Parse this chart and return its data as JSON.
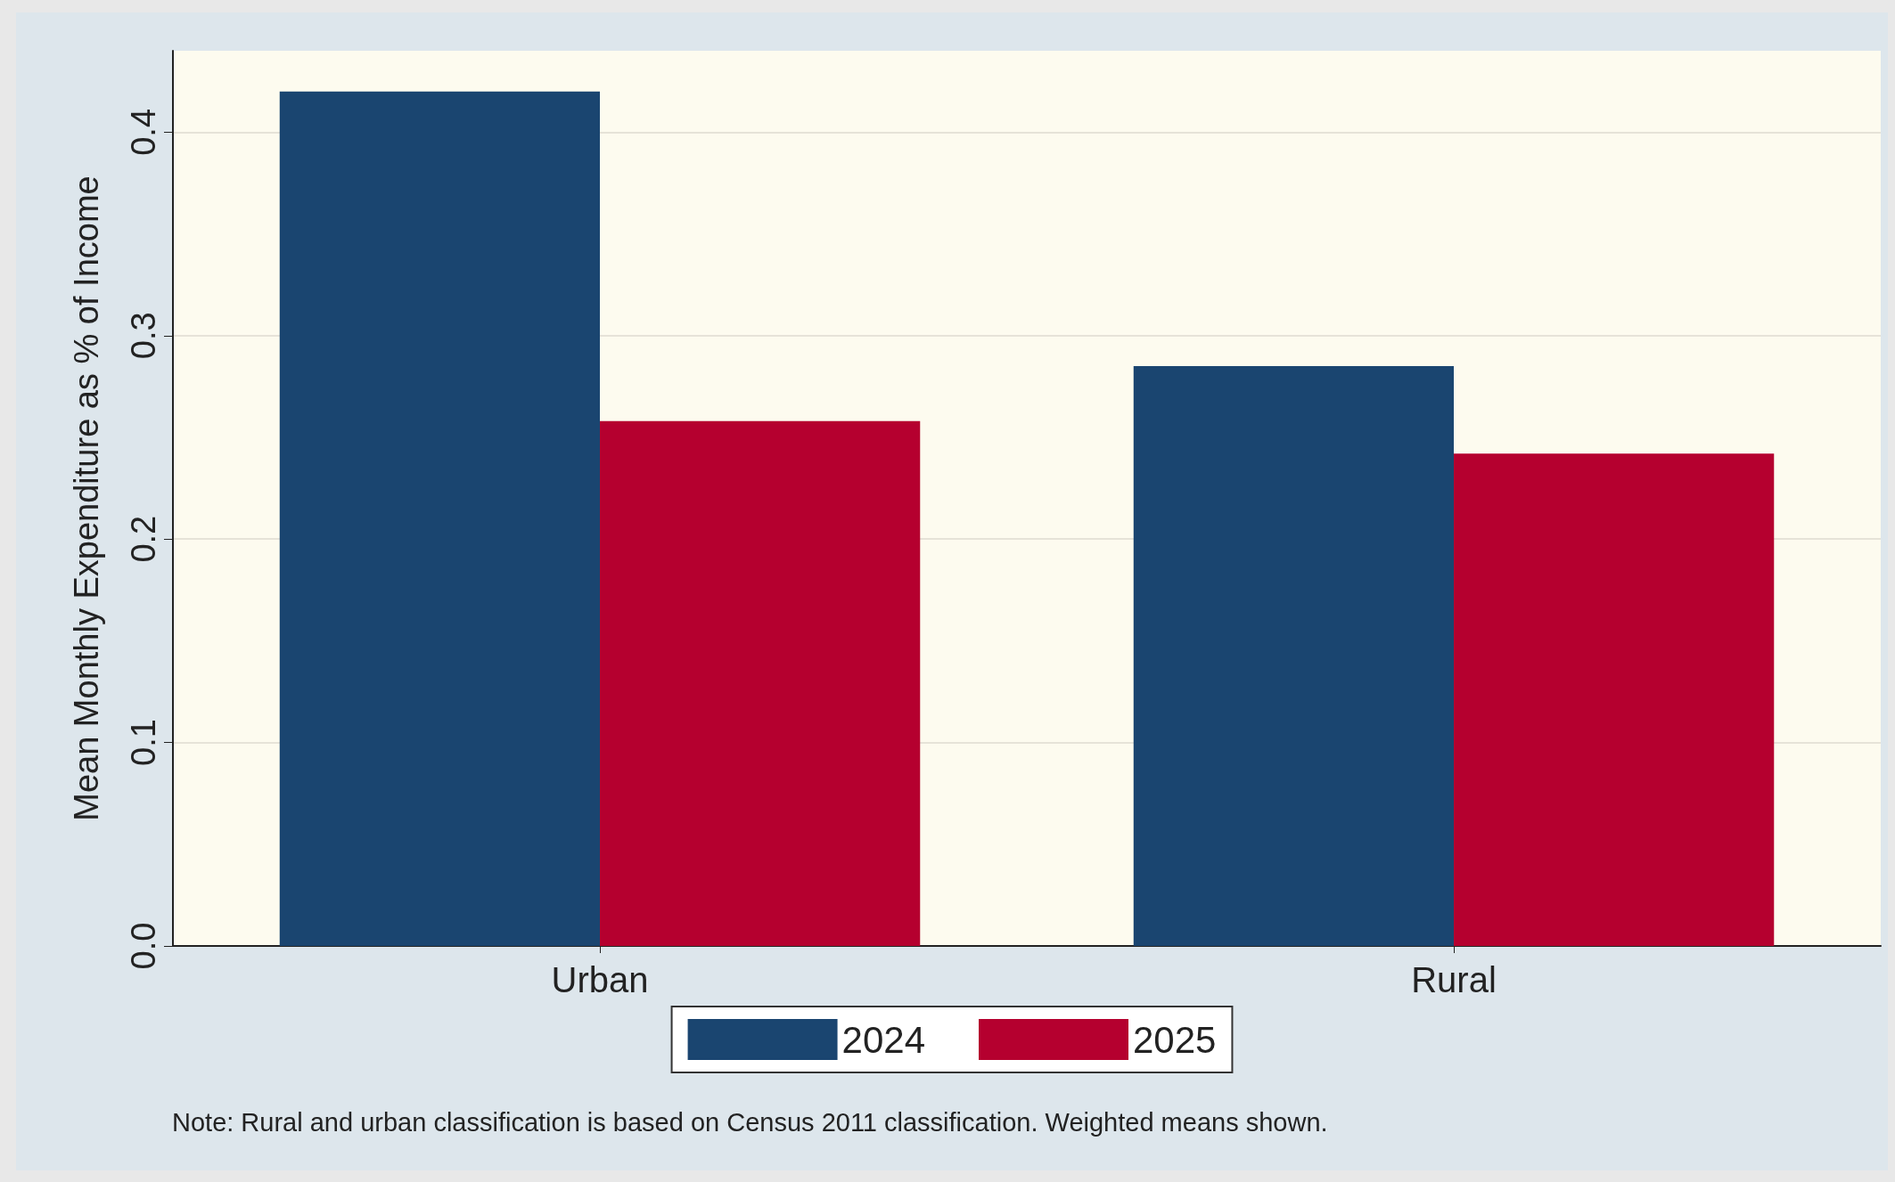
{
  "chart_data": {
    "type": "bar",
    "categories": [
      "Urban",
      "Rural"
    ],
    "series": [
      {
        "name": "2024",
        "color": "#1a4570",
        "values": [
          0.42,
          0.285
        ]
      },
      {
        "name": "2025",
        "color": "#b5002f",
        "values": [
          0.258,
          0.242
        ]
      }
    ],
    "ylabel": "Mean Monthly Expenditure as % of Income",
    "ylim": [
      0,
      0.44
    ],
    "yticks": [
      {
        "value": 0,
        "label": "0.0"
      },
      0.1,
      0.2,
      0.3,
      0.4
    ],
    "grid": "y",
    "legend": "bottom",
    "annotations": [
      "Note: Rural and urban classification is based on Census 2011 classification. Weighted means shown."
    ]
  }
}
